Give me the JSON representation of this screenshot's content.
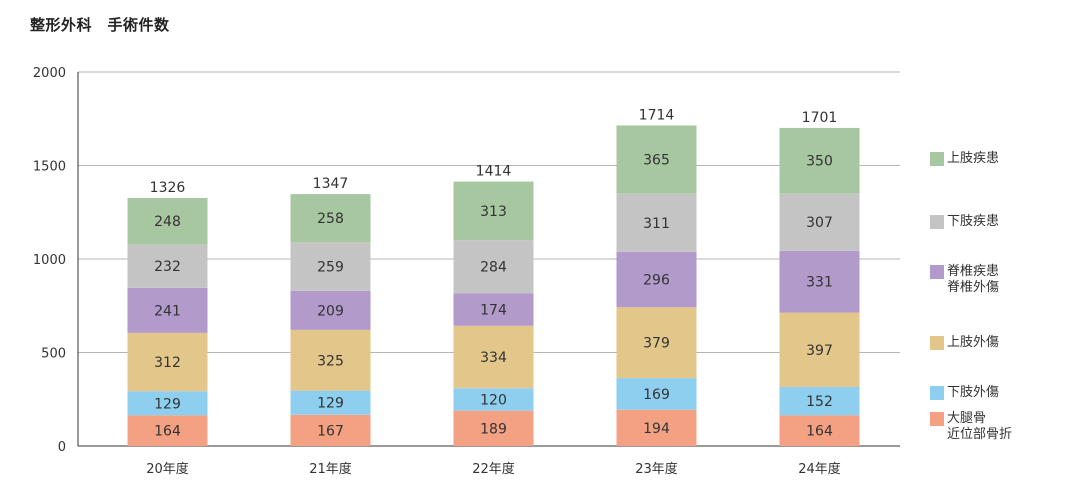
{
  "chart_data": {
    "type": "bar",
    "stacked": true,
    "title": "整形外科　手術件数",
    "xlabel": "",
    "ylabel": "",
    "ylim": [
      0,
      2000
    ],
    "yticks": [
      0,
      500,
      1000,
      1500,
      2000
    ],
    "grid": true,
    "legend_position": "right",
    "categories": [
      "20年度",
      "21年度",
      "22年度",
      "23年度",
      "24年度"
    ],
    "totals": [
      1326,
      1347,
      1414,
      1714,
      1701
    ],
    "series": [
      {
        "name": "大腿骨\n近位部骨折",
        "color": "#f4a183",
        "values": [
          164,
          167,
          189,
          194,
          164
        ]
      },
      {
        "name": "下肢外傷",
        "color": "#8ecfef",
        "values": [
          129,
          129,
          120,
          169,
          152
        ]
      },
      {
        "name": "上肢外傷",
        "color": "#e2c68a",
        "values": [
          312,
          325,
          334,
          379,
          397
        ]
      },
      {
        "name": "脊椎疾患\n脊椎外傷",
        "color": "#b29acb",
        "values": [
          241,
          209,
          174,
          296,
          331
        ]
      },
      {
        "name": "下肢疾患",
        "color": "#c4c4c4",
        "values": [
          232,
          259,
          284,
          311,
          307
        ]
      },
      {
        "name": "上肢疾患",
        "color": "#a7c7a1",
        "values": [
          248,
          258,
          313,
          365,
          350
        ]
      }
    ]
  }
}
